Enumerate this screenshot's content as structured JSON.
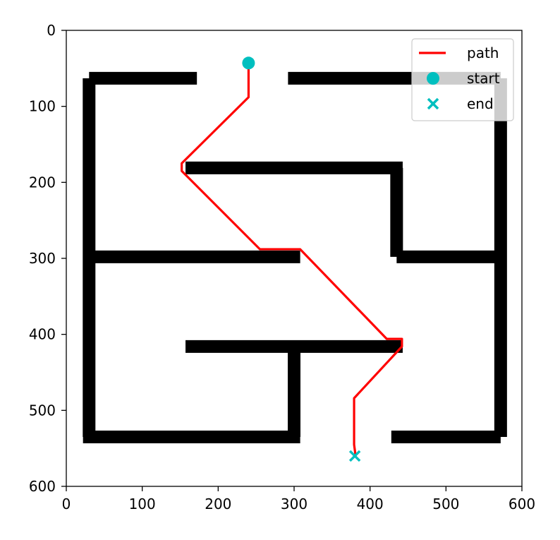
{
  "chart_data": {
    "type": "scatter",
    "xlim": [
      0,
      600
    ],
    "ylim": [
      600,
      0
    ],
    "x_ticks": [
      0,
      100,
      200,
      300,
      400,
      500,
      600
    ],
    "y_ticks": [
      0,
      100,
      200,
      300,
      400,
      500,
      600
    ],
    "grid": false,
    "legend": {
      "placement": "top-right",
      "entries": [
        {
          "label": "path",
          "kind": "line",
          "color": "#ff0000"
        },
        {
          "label": "start",
          "kind": "circle",
          "color": "#00bfbf"
        },
        {
          "label": "end",
          "kind": "x",
          "color": "#00bfbf"
        }
      ]
    },
    "walls": [
      {
        "x": [
          30,
          172
        ],
        "y": [
          63,
          63
        ]
      },
      {
        "x": [
          292,
          572
        ],
        "y": [
          63,
          63
        ]
      },
      {
        "x": [
          30,
          30
        ],
        "y": [
          63,
          535
        ]
      },
      {
        "x": [
          572,
          572
        ],
        "y": [
          63,
          535
        ]
      },
      {
        "x": [
          157,
          443
        ],
        "y": [
          181,
          181
        ]
      },
      {
        "x": [
          435,
          435
        ],
        "y": [
          181,
          298
        ]
      },
      {
        "x": [
          435,
          572
        ],
        "y": [
          298,
          298
        ]
      },
      {
        "x": [
          22,
          308
        ],
        "y": [
          298,
          298
        ]
      },
      {
        "x": [
          157,
          443
        ],
        "y": [
          416,
          416
        ]
      },
      {
        "x": [
          300,
          300
        ],
        "y": [
          416,
          535
        ]
      },
      {
        "x": [
          22,
          308
        ],
        "y": [
          535,
          535
        ]
      },
      {
        "x": [
          428,
          572
        ],
        "y": [
          535,
          535
        ]
      }
    ],
    "wall_color": "#000000",
    "path": {
      "name": "path",
      "color": "#ff0000",
      "x": [
        240,
        240,
        152,
        152,
        255,
        308,
        422,
        442,
        442,
        379,
        379,
        381
      ],
      "y": [
        42,
        88,
        175,
        185,
        288,
        288,
        406,
        406,
        416,
        484,
        545,
        560
      ]
    },
    "start": {
      "name": "start",
      "x": 240,
      "y": 43,
      "color": "#00bfbf"
    },
    "end": {
      "name": "end",
      "x": 380,
      "y": 560,
      "color": "#00bfbf"
    }
  }
}
